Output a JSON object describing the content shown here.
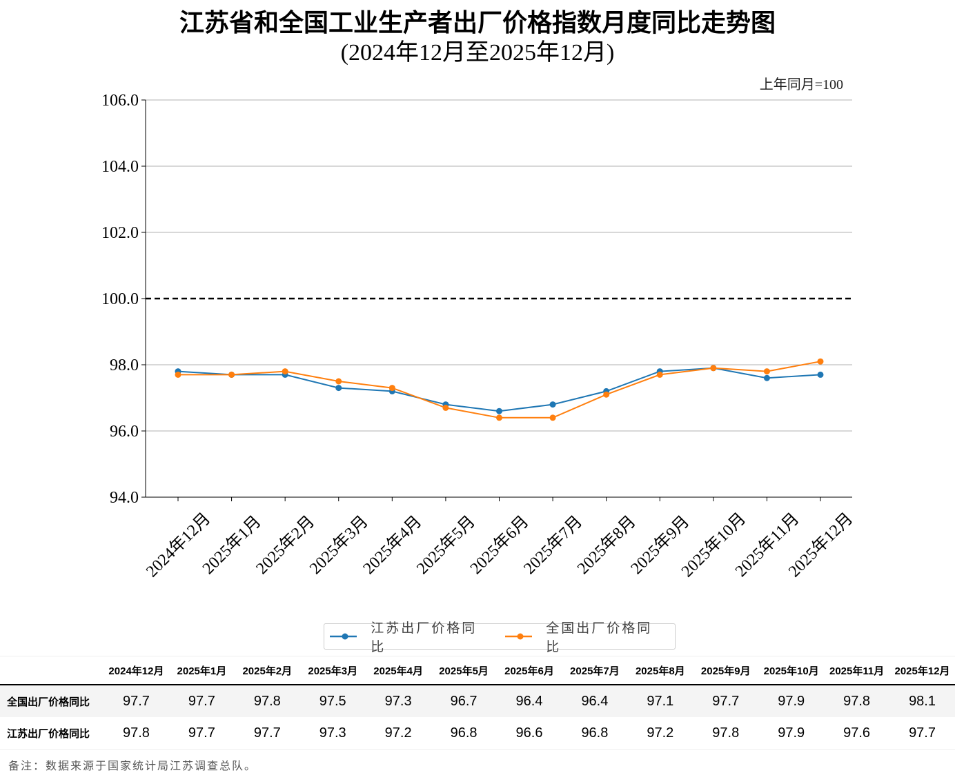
{
  "chart_data": {
    "type": "line",
    "title": "江苏省和全国工业生产者出厂价格指数月度同比走势图",
    "subtitle": "(2024年12月至2025年12月)",
    "unit_note": "上年同月=100",
    "categories": [
      "2024年12月",
      "2025年1月",
      "2025年2月",
      "2025年3月",
      "2025年4月",
      "2025年5月",
      "2025年6月",
      "2025年7月",
      "2025年8月",
      "2025年9月",
      "2025年10月",
      "2025年11月",
      "2025年12月"
    ],
    "series": [
      {
        "name": "江苏出厂价格同比",
        "color": "#1f77b4",
        "values": [
          97.8,
          97.7,
          97.7,
          97.3,
          97.2,
          96.8,
          96.6,
          96.8,
          97.2,
          97.8,
          97.9,
          97.6,
          97.7
        ]
      },
      {
        "name": "全国出厂价格同比",
        "color": "#ff7f0e",
        "values": [
          97.7,
          97.7,
          97.8,
          97.5,
          97.3,
          96.7,
          96.4,
          96.4,
          97.1,
          97.7,
          97.9,
          97.8,
          98.1
        ]
      }
    ],
    "ylim": [
      94.0,
      106.0
    ],
    "yticks": [
      "94.0",
      "96.0",
      "98.0",
      "100.0",
      "102.0",
      "104.0",
      "106.0"
    ],
    "reference_line": 100.0,
    "grid": "horizontal",
    "legend_placement": "bottom-center"
  },
  "table": {
    "rows": [
      {
        "label": "全国出厂价格同比",
        "values": [
          "97.7",
          "97.7",
          "97.8",
          "97.5",
          "97.3",
          "96.7",
          "96.4",
          "96.4",
          "97.1",
          "97.7",
          "97.9",
          "97.8",
          "98.1"
        ]
      },
      {
        "label": "江苏出厂价格同比",
        "values": [
          "97.8",
          "97.7",
          "97.7",
          "97.3",
          "97.2",
          "96.8",
          "96.6",
          "96.8",
          "97.2",
          "97.8",
          "97.9",
          "97.6",
          "97.7"
        ]
      }
    ]
  },
  "note": "备注：数据来源于国家统计局江苏调查总队。"
}
